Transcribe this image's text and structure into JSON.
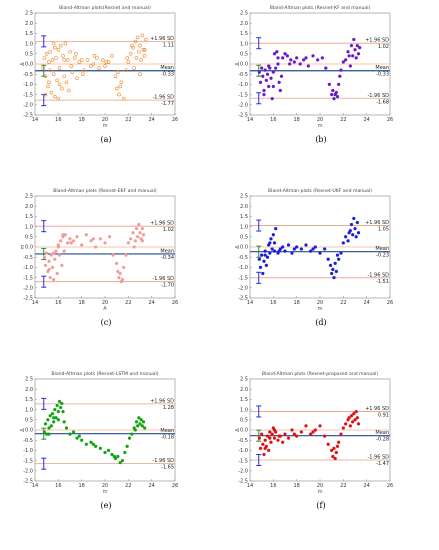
{
  "figure": {
    "colors": {
      "frame": "#888888",
      "loa_line": "#e3a08a",
      "zero_line": "#f2b38f",
      "mean_line": "#1f4e8c",
      "ci_bar": "#2a2ae0",
      "ci_mean_bar": "#2e8b2e"
    }
  },
  "chart_data": [
    {
      "type": "scatter",
      "caption": "(a)",
      "title": "Bland-Altman plots(Resnet and manual)",
      "xlabel": "m",
      "ylabel": "Δ",
      "xlim": [
        14,
        26
      ],
      "ylim": [
        -2.5,
        2.5
      ],
      "xticks": [
        "14",
        "16",
        "18",
        "20",
        "22",
        "24",
        "26"
      ],
      "yticks": [
        "2.5",
        "2.0",
        "1.5",
        "1.0",
        "0.5",
        "0.0",
        "-0.5",
        "-1.0",
        "-1.5",
        "-2.0",
        "-2.5"
      ],
      "marker": {
        "shape": "open-circle",
        "color": "#f08a2c"
      },
      "upper_loa": 1.11,
      "mean": -0.33,
      "lower_loa": -1.77,
      "labels": {
        "upper_text": "+1.96 SD",
        "upper_value": "1.11",
        "mean_text": "Mean",
        "mean_value": "-0.33",
        "lower_text": "-1.96 SD",
        "lower_value": "-1.77"
      },
      "series": [
        {
          "x": [
            14.7,
            14.8,
            14.9,
            15.0,
            15.1,
            15.2,
            15.2,
            15.3,
            15.4,
            15.5,
            15.6,
            15.6,
            15.7,
            15.8,
            15.9,
            16.0,
            16.0,
            16.1,
            16.2,
            16.3,
            16.4,
            16.5,
            16.6,
            16.7,
            16.8,
            16.9,
            17.0,
            17.2,
            17.4,
            17.6,
            17.8,
            18.0,
            18.2,
            18.5,
            18.8,
            19.0,
            19.3,
            19.5,
            19.8,
            20.0,
            20.3,
            20.6,
            20.9,
            21.0,
            21.1,
            21.2,
            21.4,
            21.6,
            21.8,
            22.0,
            22.2,
            22.4,
            22.5,
            22.6,
            22.7,
            22.8,
            22.9,
            23.0,
            23.1,
            23.2,
            23.3,
            23.4,
            23.5,
            14.9,
            15.3,
            15.7,
            16.1,
            16.5,
            17.1,
            17.5,
            18.1,
            19.1,
            20.1,
            21.3,
            21.9,
            22.3,
            23.0,
            23.4
          ],
          "y": [
            -0.2,
            0.3,
            -0.6,
            0.5,
            -1.1,
            0.1,
            -0.9,
            0.6,
            -1.4,
            0.2,
            -0.5,
            1.0,
            -1.6,
            0.3,
            -0.8,
            0.7,
            -1.7,
            -0.2,
            0.9,
            -1.2,
            0.4,
            -0.6,
            1.0,
            -0.9,
            0.2,
            -1.3,
            0.6,
            -0.4,
            0.3,
            -0.7,
            0.1,
            0.2,
            -0.3,
            0.2,
            -0.1,
            0.0,
            0.3,
            -0.2,
            0.2,
            -0.1,
            0.1,
            0.4,
            -0.6,
            -1.2,
            -0.4,
            -1.5,
            -0.9,
            -1.7,
            -0.3,
            0.1,
            0.5,
            0.8,
            -0.2,
            1.1,
            0.3,
            1.3,
            0.6,
            0.9,
            0.2,
            1.4,
            0.7,
            0.4,
            1.2,
            -1.5,
            -0.3,
            0.8,
            -1.0,
            0.2,
            -0.1,
            0.5,
            -0.5,
            0.4,
            0.1,
            -1.1,
            0.3,
            0.9,
            -0.5,
            0.7
          ]
        }
      ]
    },
    {
      "type": "scatter",
      "caption": "(b)",
      "title": "Bland-Altman plots (Resnet-KF and manual)",
      "xlabel": "m",
      "ylabel": "Δ",
      "xlim": [
        14,
        26
      ],
      "ylim": [
        -2.5,
        2.5
      ],
      "xticks": [
        "14",
        "16",
        "18",
        "20",
        "22",
        "24",
        "26"
      ],
      "yticks": [
        "2.5",
        "2.0",
        "1.5",
        "1.0",
        "0.5",
        "0.0",
        "-0.5",
        "-1.0",
        "-1.5",
        "-2.0",
        "-2.5"
      ],
      "marker": {
        "shape": "filled-circle",
        "color": "#6a19c6"
      },
      "upper_loa": 1.02,
      "mean": -0.33,
      "lower_loa": -1.68,
      "labels": {
        "upper_text": "+1.96 SD",
        "upper_value": "1.02",
        "mean_text": "Mean",
        "mean_value": "-0.33",
        "lower_text": "-1.96 SD",
        "lower_value": "-1.68"
      },
      "series": [
        {
          "x": [
            14.8,
            14.9,
            15.0,
            15.1,
            15.2,
            15.3,
            15.4,
            15.5,
            15.6,
            15.7,
            15.8,
            15.9,
            16.0,
            16.1,
            16.2,
            16.3,
            16.4,
            16.5,
            16.6,
            16.7,
            16.8,
            17.0,
            17.2,
            17.5,
            17.8,
            18.0,
            18.3,
            18.6,
            19.0,
            19.4,
            19.8,
            20.2,
            20.5,
            20.8,
            21.0,
            21.1,
            21.2,
            21.3,
            21.4,
            21.5,
            21.6,
            21.8,
            22.0,
            22.2,
            22.4,
            22.6,
            22.7,
            22.8,
            22.9,
            23.0,
            23.1,
            23.2,
            23.3,
            23.4,
            15.2,
            15.6,
            16.0,
            16.4,
            17.4,
            18.8,
            21.7,
            22.5
          ],
          "y": [
            -0.4,
            -0.9,
            -0.2,
            -0.6,
            -1.3,
            -0.3,
            -0.8,
            -0.5,
            -1.1,
            -0.2,
            -0.7,
            -1.7,
            -0.4,
            0.5,
            -0.2,
            0.6,
            0.0,
            -0.9,
            -1.3,
            -0.6,
            0.3,
            0.5,
            0.4,
            0.2,
            0.1,
            0.3,
            0.0,
            0.2,
            -0.1,
            0.4,
            0.2,
            0.3,
            -0.2,
            -1.0,
            -1.5,
            -1.3,
            -1.7,
            -1.5,
            -1.4,
            -1.6,
            -1.0,
            -0.3,
            0.1,
            0.2,
            0.6,
            -0.1,
            0.9,
            0.4,
            1.2,
            0.7,
            0.3,
            0.9,
            0.5,
            0.8,
            -1.5,
            -0.1,
            -1.1,
            0.3,
            0.0,
            0.3,
            -0.6,
            0.4
          ]
        }
      ]
    },
    {
      "type": "scatter",
      "caption": "(c)",
      "title": "Bland-Altman plots (Resnet-EKF and manual)",
      "xlabel": "A",
      "ylabel": "m",
      "xlim": [
        14,
        26
      ],
      "ylim": [
        -2.5,
        2.5
      ],
      "xticks": [
        "14",
        "16",
        "18",
        "20",
        "22",
        "24",
        "26"
      ],
      "yticks": [
        "2.5",
        "2.0",
        "1.5",
        "1.0",
        "0.5",
        "0.0",
        "-0.5",
        "-1.0",
        "-1.5",
        "-2.0",
        "-2.5"
      ],
      "marker": {
        "shape": "filled-circle",
        "color": "#f59a9a"
      },
      "upper_loa": 1.02,
      "mean": -0.34,
      "lower_loa": -1.7,
      "labels": {
        "upper_text": "+1.96 SD",
        "upper_value": "1.02",
        "mean_text": "Mean",
        "mean_value": "-0.34",
        "lower_text": "-1.96 SD",
        "lower_value": "-1.70"
      },
      "series": [
        {
          "x": [
            14.8,
            14.9,
            15.0,
            15.1,
            15.2,
            15.3,
            15.4,
            15.5,
            15.6,
            15.7,
            15.8,
            15.9,
            16.0,
            16.1,
            16.2,
            16.3,
            16.4,
            16.5,
            16.6,
            16.8,
            17.0,
            17.3,
            17.6,
            18.0,
            18.4,
            18.8,
            19.2,
            19.6,
            20.0,
            20.4,
            20.7,
            21.0,
            21.1,
            21.2,
            21.3,
            21.4,
            21.5,
            21.6,
            21.8,
            22.0,
            22.2,
            22.4,
            22.6,
            22.7,
            22.8,
            22.9,
            23.0,
            23.1,
            23.2,
            23.3,
            15.2,
            15.6,
            16.0,
            16.4,
            17.1,
            19.0,
            22.5,
            23.2
          ],
          "y": [
            -0.5,
            -0.9,
            -0.3,
            -1.2,
            -0.7,
            -1.5,
            -0.4,
            -1.0,
            -1.6,
            -0.6,
            -0.2,
            -1.3,
            0.1,
            -0.4,
            0.3,
            -0.9,
            0.5,
            -0.2,
            0.6,
            0.2,
            0.4,
            0.3,
            0.5,
            0.1,
            0.6,
            0.3,
            0.0,
            0.4,
            0.2,
            0.5,
            -0.4,
            -0.8,
            -1.2,
            -1.5,
            -1.3,
            -1.7,
            -1.6,
            -1.0,
            -0.4,
            0.2,
            0.4,
            0.7,
            0.3,
            0.9,
            0.5,
            1.1,
            0.7,
            0.4,
            0.9,
            0.6,
            -1.1,
            -0.3,
            0.0,
            0.6,
            0.2,
            0.4,
            0.0,
            0.3
          ]
        }
      ]
    },
    {
      "type": "scatter",
      "caption": "(d)",
      "title": "Bland-Altman plots (Resnet-UKF and manual)",
      "xlabel": "m",
      "ylabel": "Δ",
      "xlim": [
        14,
        26
      ],
      "ylim": [
        -2.5,
        2.5
      ],
      "xticks": [
        "14",
        "16",
        "18",
        "20",
        "22",
        "24",
        "26"
      ],
      "yticks": [
        "2.5",
        "2.0",
        "1.5",
        "1.0",
        "0.5",
        "0.0",
        "-0.5",
        "-1.0",
        "-1.5",
        "-2.0",
        "-2.5"
      ],
      "marker": {
        "shape": "filled-circle",
        "color": "#1c1cd9"
      },
      "upper_loa": 1.05,
      "mean": -0.23,
      "lower_loa": -1.51,
      "labels": {
        "upper_text": "+1.96 SD",
        "upper_value": "1.05",
        "mean_text": "Mean",
        "mean_value": "-0.23",
        "lower_text": "-1.96 SD",
        "lower_value": "-1.51"
      },
      "series": [
        {
          "x": [
            14.8,
            14.9,
            15.0,
            15.1,
            15.2,
            15.3,
            15.4,
            15.5,
            15.6,
            15.7,
            15.8,
            15.9,
            16.0,
            16.1,
            16.2,
            16.4,
            16.6,
            16.8,
            17.0,
            17.3,
            17.6,
            18.0,
            18.4,
            18.8,
            19.2,
            19.6,
            20.0,
            20.4,
            20.7,
            20.9,
            21.0,
            21.1,
            21.2,
            21.3,
            21.4,
            21.6,
            21.8,
            22.0,
            22.2,
            22.4,
            22.6,
            22.7,
            22.8,
            22.9,
            23.0,
            23.1,
            23.2,
            23.3,
            15.3,
            15.7,
            16.1,
            16.5,
            17.8,
            19.4,
            21.5,
            22.5
          ],
          "y": [
            -0.6,
            -1.0,
            -0.4,
            -1.3,
            -0.7,
            -0.2,
            -0.9,
            -0.5,
            0.1,
            -0.3,
            0.4,
            -0.1,
            0.6,
            0.2,
            0.9,
            -0.3,
            -0.1,
            0.0,
            -0.2,
            0.1,
            -0.3,
            0.0,
            -0.1,
            0.1,
            -0.2,
            0.0,
            -0.3,
            -0.1,
            -0.6,
            -0.9,
            -1.3,
            -1.1,
            -1.5,
            -0.8,
            -1.2,
            -0.6,
            -0.3,
            0.2,
            0.5,
            0.3,
            0.8,
            1.1,
            0.6,
            1.4,
            0.9,
            0.5,
            1.2,
            0.7,
            -0.4,
            0.2,
            -0.2,
            -0.2,
            -0.1,
            -0.1,
            -0.4,
            0.7
          ]
        }
      ]
    },
    {
      "type": "scatter",
      "caption": "(e)",
      "title": "Bland-Altman plots (Resnet-LSTM and manual)",
      "xlabel": "m",
      "ylabel": "Δ",
      "xlim": [
        14,
        26
      ],
      "ylim": [
        -2.5,
        2.5
      ],
      "xticks": [
        "14",
        "16",
        "18",
        "20",
        "22",
        "24",
        "26"
      ],
      "yticks": [
        "2.5",
        "2.0",
        "1.5",
        "1.0",
        "0.5",
        "0.0",
        "-0.5",
        "-1.0",
        "-1.5",
        "-2.0",
        "-2.5"
      ],
      "marker": {
        "shape": "filled-circle",
        "color": "#11a411"
      },
      "upper_loa": 1.28,
      "mean": -0.18,
      "lower_loa": -1.65,
      "labels": {
        "upper_text": "+1.96 SD",
        "upper_value": "1.28",
        "mean_text": "Mean",
        "mean_value": "-0.18",
        "lower_text": "-1.96 SD",
        "lower_value": "-1.65"
      },
      "series": [
        {
          "x": [
            14.8,
            14.9,
            15.0,
            15.1,
            15.2,
            15.3,
            15.4,
            15.5,
            15.6,
            15.7,
            15.8,
            15.9,
            16.0,
            16.1,
            16.2,
            16.3,
            16.5,
            16.7,
            17.0,
            17.3,
            17.6,
            18.0,
            18.4,
            18.8,
            19.2,
            19.6,
            20.0,
            20.3,
            20.6,
            20.9,
            21.1,
            21.3,
            21.5,
            21.7,
            21.9,
            22.1,
            22.3,
            22.5,
            22.7,
            22.8,
            22.9,
            23.0,
            23.1,
            23.2,
            23.3,
            23.4,
            15.2,
            15.6,
            16.0,
            16.4,
            17.8,
            19.0,
            20.8,
            22.6
          ],
          "y": [
            -0.1,
            0.3,
            -0.2,
            0.5,
            0.1,
            0.7,
            0.2,
            0.8,
            0.4,
            1.0,
            0.6,
            1.2,
            0.9,
            1.4,
            1.1,
            1.3,
            0.4,
            0.1,
            -0.2,
            -0.1,
            -0.4,
            -0.5,
            -0.7,
            -0.6,
            -0.8,
            -0.9,
            -1.1,
            -1.0,
            -1.2,
            -1.4,
            -1.3,
            -1.6,
            -1.5,
            -1.1,
            -0.8,
            -0.4,
            -0.2,
            0.1,
            0.4,
            0.2,
            0.6,
            0.3,
            0.5,
            0.2,
            0.4,
            0.1,
            -0.2,
            0.6,
            0.5,
            0.9,
            -0.3,
            -0.7,
            -1.3,
            0.0
          ]
        }
      ]
    },
    {
      "type": "scatter",
      "caption": "(f)",
      "title": "Bland-Altman plots (Resnet-proposed and manual)",
      "xlabel": "m",
      "ylabel": "Δ",
      "xlim": [
        14,
        26
      ],
      "ylim": [
        -2.5,
        2.5
      ],
      "xticks": [
        "14",
        "16",
        "18",
        "20",
        "22",
        "24",
        "26"
      ],
      "yticks": [
        "2.5",
        "2.0",
        "1.5",
        "1.0",
        "0.5",
        "0.0",
        "-0.5",
        "-1.0",
        "-1.5",
        "-2.0",
        "-2.5"
      ],
      "marker": {
        "shape": "filled-circle",
        "color": "#e01010"
      },
      "upper_loa": 0.91,
      "mean": -0.28,
      "lower_loa": -1.47,
      "labels": {
        "upper_text": "+1.96 SD",
        "upper_value": "0.91",
        "mean_text": "Mean",
        "mean_value": "-0.28",
        "lower_text": "-1.96 SD",
        "lower_value": "-1.47"
      },
      "series": [
        {
          "x": [
            14.8,
            14.9,
            15.0,
            15.1,
            15.2,
            15.3,
            15.4,
            15.5,
            15.6,
            15.7,
            15.8,
            15.9,
            16.0,
            16.1,
            16.2,
            16.4,
            16.6,
            16.8,
            17.0,
            17.3,
            17.6,
            18.0,
            18.4,
            18.8,
            19.2,
            19.6,
            20.0,
            20.4,
            20.7,
            21.0,
            21.1,
            21.2,
            21.3,
            21.4,
            21.6,
            21.8,
            22.0,
            22.2,
            22.4,
            22.6,
            22.7,
            22.8,
            22.9,
            23.0,
            23.1,
            23.2,
            23.3,
            15.3,
            15.7,
            16.1,
            16.5,
            17.8,
            19.4,
            21.5,
            22.5
          ],
          "y": [
            -0.4,
            -0.9,
            -0.2,
            -0.7,
            -1.2,
            -0.5,
            -0.8,
            -0.3,
            -1.0,
            -0.1,
            -0.6,
            -0.2,
            0.1,
            -0.4,
            -0.1,
            -0.5,
            -0.3,
            -0.6,
            -0.2,
            -0.4,
            0.0,
            -0.3,
            -0.1,
            0.2,
            -0.2,
            0.0,
            0.2,
            -0.3,
            -0.7,
            -1.0,
            -1.3,
            -0.9,
            -1.4,
            -1.1,
            -0.6,
            -0.2,
            0.1,
            0.3,
            0.5,
            0.2,
            0.7,
            0.4,
            0.8,
            0.5,
            0.9,
            0.6,
            0.3,
            -0.9,
            -0.4,
            0.0,
            -0.3,
            -0.2,
            -0.1,
            -0.8,
            0.6
          ]
        }
      ]
    }
  ]
}
